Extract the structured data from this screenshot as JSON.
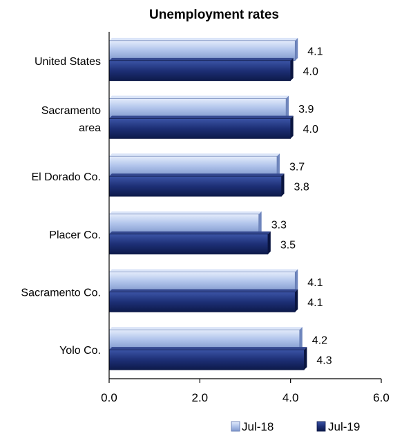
{
  "chart_data": {
    "type": "bar",
    "orientation": "horizontal",
    "title": "Unemployment rates",
    "xlabel": "",
    "ylabel": "",
    "categories": [
      [
        "United States"
      ],
      [
        "Sacramento",
        "area"
      ],
      [
        "El Dorado Co."
      ],
      [
        "Placer Co."
      ],
      [
        "Sacramento Co."
      ],
      [
        "Yolo Co."
      ]
    ],
    "series": [
      {
        "name": "Jul-18",
        "values": [
          4.1,
          3.9,
          3.7,
          3.3,
          4.1,
          4.2
        ],
        "labels": [
          "4.1",
          "3.9",
          "3.7",
          "3.3",
          "4.1",
          "4.2"
        ],
        "color": "#a8bde6"
      },
      {
        "name": "Jul-19",
        "values": [
          4.0,
          4.0,
          3.8,
          3.5,
          4.1,
          4.3
        ],
        "labels": [
          "4.0",
          "4.0",
          "3.8",
          "3.5",
          "4.1",
          "4.3"
        ],
        "color": "#1d2f75"
      }
    ],
    "xlim": [
      0,
      6
    ],
    "xticks": [
      0,
      2,
      4,
      6
    ],
    "xtick_labels": [
      "0.0",
      "2.0",
      "4.0",
      "6.0"
    ],
    "grid": false,
    "legend": "bottom-right"
  }
}
